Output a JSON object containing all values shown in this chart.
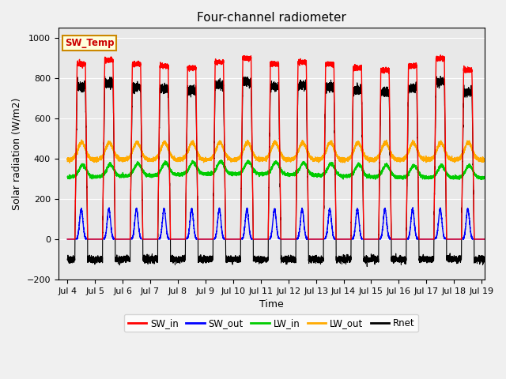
{
  "title": "Four-channel radiometer",
  "xlabel": "Time",
  "ylabel": "Solar radiation (W/m2)",
  "ylim": [
    -200,
    1050
  ],
  "xlim_days": [
    3.67,
    19.1
  ],
  "yticks": [
    -200,
    0,
    200,
    400,
    600,
    800,
    1000
  ],
  "xtick_labels": [
    "Jul 4",
    "Jul 5",
    "Jul 6",
    "Jul 7",
    "Jul 8",
    "Jul 9",
    "Jul 10",
    "Jul 11",
    "Jul 12",
    "Jul 13",
    "Jul 14",
    "Jul 15",
    "Jul 16",
    "Jul 17",
    "Jul 18",
    "Jul 19"
  ],
  "xtick_positions": [
    4,
    5,
    6,
    7,
    8,
    9,
    10,
    11,
    12,
    13,
    14,
    15,
    16,
    17,
    18,
    19
  ],
  "colors": {
    "SW_in": "#ff0000",
    "SW_out": "#0000ff",
    "LW_in": "#00cc00",
    "LW_out": "#ffaa00",
    "Rnet": "#000000"
  },
  "annotation_text": "SW_Temp",
  "annotation_color": "#cc0000",
  "annotation_bg": "#ffffdd",
  "annotation_border": "#cc8800",
  "grid_color": "#ffffff",
  "bg_color": "#e8e8e8",
  "fig_bg": "#f0f0f0"
}
